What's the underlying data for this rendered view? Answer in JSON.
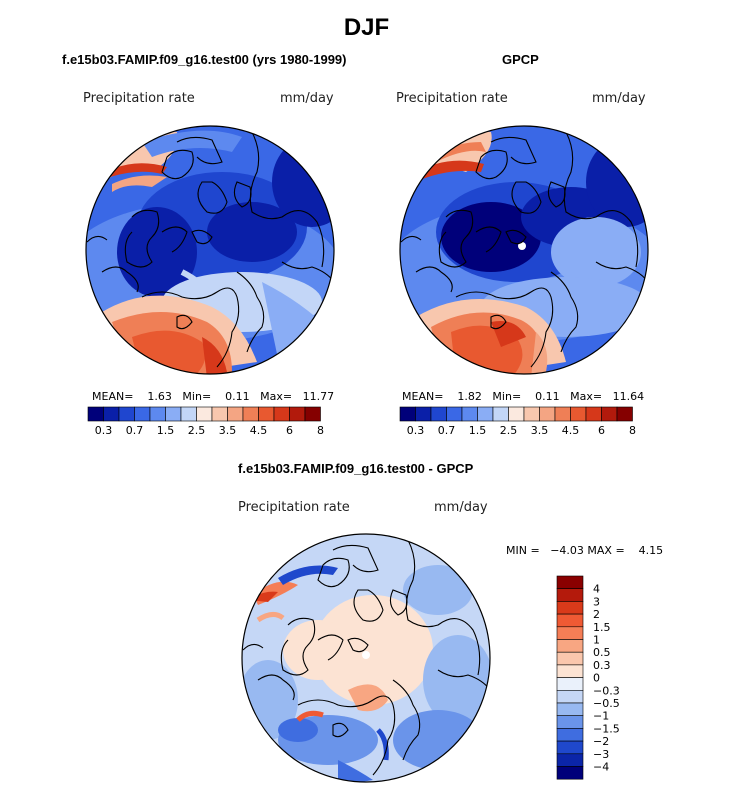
{
  "title": "DJF",
  "panels": [
    {
      "title": "f.e15b03.FAMIP.f09_g16.test00 (yrs 1980-1999)",
      "variable": "Precipitation rate",
      "units": "mm/day",
      "stats": {
        "mean_label": "MEAN=",
        "mean": "1.63",
        "min_label": "Min=",
        "min": "0.11",
        "max_label": "Max=",
        "max": "11.77"
      }
    },
    {
      "title": "GPCP",
      "variable": "Precipitation rate",
      "units": "mm/day",
      "stats": {
        "mean_label": "MEAN=",
        "mean": "1.82",
        "min_label": "Min=",
        "min": "0.11",
        "max_label": "Max=",
        "max": "11.64"
      }
    },
    {
      "title": "f.e15b03.FAMIP.f09_g16.test00 - GPCP",
      "variable": "Precipitation rate",
      "units": "mm/day",
      "stats": {
        "min_label": "MIN =",
        "min": "−4.03",
        "max_label": "MAX =",
        "max": "4.15"
      }
    }
  ],
  "abs_colorbar": {
    "colors": [
      "#00007a",
      "#0a1fa8",
      "#1f46cf",
      "#3a68e6",
      "#5d89ef",
      "#8aadf5",
      "#c3d6f7",
      "#fbe9df",
      "#f8c7ae",
      "#f4a583",
      "#ef7f56",
      "#e85930",
      "#d6381a",
      "#b21a0c",
      "#850000"
    ],
    "ticks": [
      "0.3",
      "0.7",
      "1.5",
      "2.5",
      "3.5",
      "4.5",
      "6",
      "8"
    ]
  },
  "diff_colorbar": {
    "colors_top_to_bottom": [
      "#8a0000",
      "#b41a0c",
      "#d93a1a",
      "#ef5a34",
      "#f57e56",
      "#f8a682",
      "#fac7ad",
      "#fce3d3",
      "#eaf1fb",
      "#c5d7f6",
      "#98b9f1",
      "#6a94ea",
      "#3f6de0",
      "#1f48cc",
      "#0b25a8",
      "#00007a"
    ],
    "labels_top_to_bottom": [
      "4",
      "3",
      "2",
      "1.5",
      "1",
      "0.5",
      "0.3",
      "0",
      "−0.3",
      "−0.5",
      "−1",
      "−1.5",
      "−2",
      "−3",
      "−4"
    ]
  }
}
